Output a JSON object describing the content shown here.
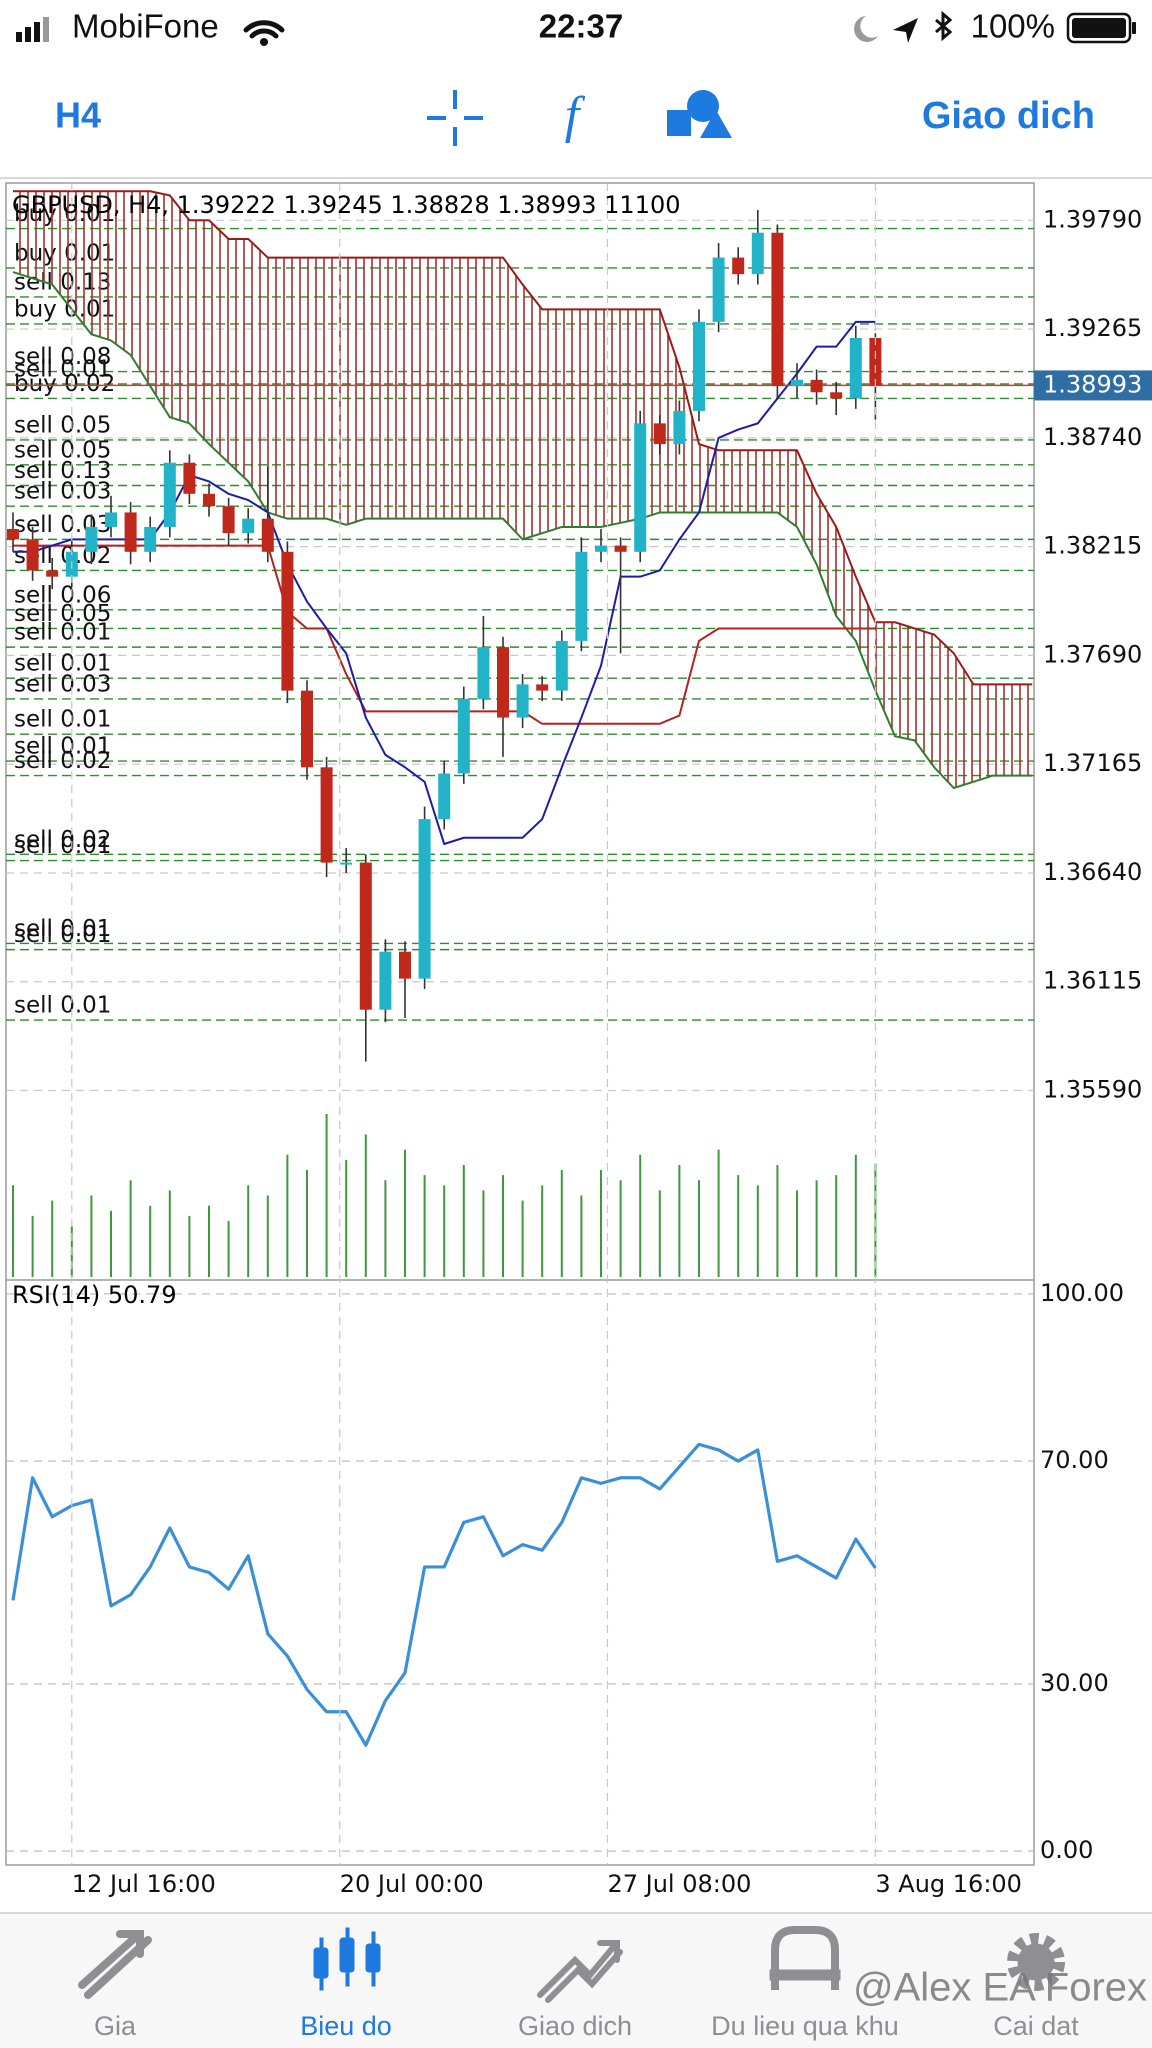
{
  "status_bar": {
    "carrier": "MobiFone",
    "time": "22:37",
    "battery": "100%"
  },
  "toolbar": {
    "timeframe": "H4",
    "trade": "Giao dich"
  },
  "chart": {
    "type": "candlestick",
    "header": "GBPUSD, H4, 1.39222 1.39245 1.38828 1.38993 11100",
    "ylim": [
      1.3469,
      1.3997
    ],
    "yticks": [
      {
        "value": 1.3979,
        "label": "1.39790"
      },
      1.39265,
      {
        "value": 1.3874,
        "label": "1.38740"
      },
      1.38215,
      {
        "value": 1.3769,
        "label": "1.37690"
      },
      1.37165,
      {
        "value": 1.3664,
        "label": "1.36640"
      },
      1.36115,
      {
        "value": 1.3559,
        "label": "1.35590"
      }
    ],
    "current_price": 1.38993,
    "xticks": [
      {
        "value": 3,
        "label": "12 Jul 16:00"
      },
      {
        "value": 16.67,
        "label": "20 Jul 00:00"
      },
      {
        "value": 30.33,
        "label": "27 Jul 08:00"
      },
      {
        "value": 44,
        "label": "3 Aug 16:00"
      }
    ],
    "candles": {
      "open": [
        1.383,
        1.3825,
        1.381,
        1.3807,
        1.3819,
        1.3831,
        1.3838,
        1.3819,
        1.3831,
        1.3862,
        1.3847,
        1.3841,
        1.3828,
        1.3835,
        1.3819,
        1.3752,
        1.3715,
        1.3669,
        1.3669,
        1.3598,
        1.3626,
        1.3613,
        1.369,
        1.3712,
        1.3748,
        1.3773,
        1.3739,
        1.3755,
        1.3752,
        1.3776,
        1.3819,
        1.3822,
        1.3819,
        1.3881,
        1.3871,
        1.3887,
        1.393,
        1.3961,
        1.3953,
        1.3973,
        1.3899,
        1.3902,
        1.3896,
        1.3893,
        1.39222
      ],
      "high": [
        1.3838,
        1.3831,
        1.3816,
        1.3825,
        1.3837,
        1.3846,
        1.3843,
        1.3836,
        1.3868,
        1.3866,
        1.3852,
        1.3845,
        1.384,
        1.386,
        1.3824,
        1.3757,
        1.372,
        1.3676,
        1.3673,
        1.3632,
        1.3631,
        1.3696,
        1.3718,
        1.3754,
        1.3788,
        1.3778,
        1.376,
        1.3759,
        1.3781,
        1.3826,
        1.383,
        1.3826,
        1.3887,
        1.3885,
        1.3892,
        1.3936,
        1.3968,
        1.3966,
        1.3984,
        1.3977,
        1.391,
        1.3907,
        1.3901,
        1.3928,
        1.39245
      ],
      "low": [
        1.3819,
        1.3805,
        1.3801,
        1.3802,
        1.3813,
        1.3826,
        1.3813,
        1.3814,
        1.3826,
        1.3842,
        1.3836,
        1.3822,
        1.3823,
        1.3814,
        1.3746,
        1.3709,
        1.3662,
        1.3664,
        1.3573,
        1.3592,
        1.3594,
        1.3608,
        1.3685,
        1.3707,
        1.3743,
        1.372,
        1.3734,
        1.3747,
        1.3747,
        1.3771,
        1.3814,
        1.377,
        1.3814,
        1.3866,
        1.3866,
        1.3882,
        1.3925,
        1.3948,
        1.3948,
        1.3893,
        1.3893,
        1.389,
        1.3885,
        1.3888,
        1.38828
      ],
      "close": [
        1.3825,
        1.381,
        1.3807,
        1.3819,
        1.3831,
        1.3838,
        1.3819,
        1.3831,
        1.3862,
        1.3847,
        1.3841,
        1.3828,
        1.3835,
        1.3819,
        1.3752,
        1.3715,
        1.3669,
        1.3669,
        1.3598,
        1.3626,
        1.3613,
        1.369,
        1.3712,
        1.3748,
        1.3773,
        1.3739,
        1.3755,
        1.3752,
        1.3776,
        1.3819,
        1.3822,
        1.3819,
        1.3881,
        1.3871,
        1.3887,
        1.393,
        1.3961,
        1.3953,
        1.3973,
        1.3899,
        1.3902,
        1.3896,
        1.3893,
        1.39222,
        1.38993
      ]
    },
    "volume": [
      9000,
      6000,
      7500,
      5000,
      8000,
      6500,
      9500,
      7000,
      8500,
      6000,
      7000,
      5500,
      9000,
      8000,
      12000,
      10500,
      16000,
      11500,
      14000,
      9500,
      12500,
      10000,
      9000,
      11000,
      8500,
      10000,
      7500,
      9000,
      10500,
      8000,
      10500,
      9500,
      12000,
      8500,
      11000,
      9500,
      12500,
      10000,
      9000,
      11000,
      8500,
      9500,
      10000,
      12000,
      11100
    ],
    "ichimoku": {
      "tenkan": [
        1.3819,
        1.3819,
        1.3822,
        1.3825,
        1.3825,
        1.3825,
        1.3825,
        1.3825,
        1.3838,
        1.3856,
        1.3853,
        1.3847,
        1.3844,
        1.3838,
        1.3813,
        1.3795,
        1.3782,
        1.377,
        1.3739,
        1.3721,
        1.3715,
        1.3708,
        1.3678,
        1.3681,
        1.3681,
        1.3681,
        1.3681,
        1.369,
        1.3715,
        1.3739,
        1.3764,
        1.3807,
        1.3807,
        1.381,
        1.3825,
        1.3838,
        1.3874,
        1.3878,
        1.3881,
        1.3893,
        1.3905,
        1.3918,
        1.3918,
        1.393,
        1.393
      ],
      "kijun": [
        1.3822,
        1.3822,
        1.3822,
        1.3822,
        1.3822,
        1.3822,
        1.3822,
        1.3822,
        1.3822,
        1.3822,
        1.3822,
        1.3822,
        1.3822,
        1.3822,
        1.379,
        1.3782,
        1.3782,
        1.376,
        1.3742,
        1.3742,
        1.3742,
        1.3742,
        1.3742,
        1.3742,
        1.3742,
        1.3742,
        1.3742,
        1.3736,
        1.3736,
        1.3736,
        1.3736,
        1.3736,
        1.3736,
        1.3736,
        1.374,
        1.3776,
        1.3782,
        1.3782,
        1.3782,
        1.3782,
        1.3782,
        1.3782,
        1.3782,
        1.3782,
        1.3782
      ],
      "span_a": [
        1.3954,
        1.3951,
        1.3948,
        1.3936,
        1.3924,
        1.3921,
        1.3914,
        1.3899,
        1.3884,
        1.3881,
        1.3871,
        1.3862,
        1.3853,
        1.3838,
        1.3835,
        1.3835,
        1.3835,
        1.3832,
        1.3835,
        1.3835,
        1.3835,
        1.3835,
        1.3835,
        1.3835,
        1.3835,
        1.3835,
        1.3825,
        1.3828,
        1.3831,
        1.3831,
        1.3831,
        1.3833,
        1.3835,
        1.3838,
        1.3838,
        1.3838,
        1.3838,
        1.3838,
        1.3838,
        1.3838,
        1.3831,
        1.3813,
        1.3788,
        1.3776,
        1.3752,
        1.373,
        1.3728,
        1.3715,
        1.3705,
        1.3708,
        1.3711,
        1.3711,
        1.3711
      ],
      "span_b": [
        1.3993,
        1.3993,
        1.3993,
        1.3993,
        1.3993,
        1.3993,
        1.3993,
        1.3993,
        1.3991,
        1.3979,
        1.3979,
        1.397,
        1.397,
        1.3961,
        1.3961,
        1.3961,
        1.3961,
        1.3961,
        1.3961,
        1.3961,
        1.3961,
        1.3961,
        1.3961,
        1.3961,
        1.3961,
        1.3961,
        1.3948,
        1.3936,
        1.3936,
        1.3936,
        1.3936,
        1.3936,
        1.3936,
        1.3936,
        1.3908,
        1.3871,
        1.3868,
        1.3868,
        1.3868,
        1.3868,
        1.3868,
        1.3847,
        1.3831,
        1.3807,
        1.3785,
        1.3785,
        1.3782,
        1.3779,
        1.377,
        1.3755,
        1.3755,
        1.3755,
        1.3755
      ]
    },
    "orders": [
      {
        "label": "buy 0.01",
        "price": 1.3975
      },
      {
        "label": "buy 0.01",
        "price": 1.3956
      },
      {
        "label": "sell 0.13",
        "price": 1.3942
      },
      {
        "label": "buy 0.01",
        "price": 1.3929
      },
      {
        "label": "sell 0.08",
        "price": 1.3906
      },
      {
        "label": "sell 0.01",
        "price": 1.39
      },
      {
        "label": "buy 0.02",
        "price": 1.3893
      },
      {
        "label": "sell 0.05",
        "price": 1.3873
      },
      {
        "label": "sell 0.05",
        "price": 1.3861
      },
      {
        "label": "sell 0.13",
        "price": 1.3851
      },
      {
        "label": "sell 0.03",
        "price": 1.3841
      },
      {
        "label": "sell 0.03",
        "price": 1.3825
      },
      {
        "label": "sell 0.02",
        "price": 1.381
      },
      {
        "label": "sell 0.06",
        "price": 1.3791
      },
      {
        "label": "sell 0.05",
        "price": 1.3782
      },
      {
        "label": "sell 0.01",
        "price": 1.3773
      },
      {
        "label": "sell 0.01",
        "price": 1.3758
      },
      {
        "label": "sell 0.03",
        "price": 1.3748
      },
      {
        "label": "sell 0.01",
        "price": 1.3731
      },
      {
        "label": "sell 0.01",
        "price": 1.3718
      },
      {
        "label": "sell 0.02",
        "price": 1.3711
      },
      {
        "label": "sell 0.02",
        "price": 1.3673
      },
      {
        "label": "sell 0.01",
        "price": 1.367
      },
      {
        "label": "sell 0.01",
        "price": 1.363
      },
      {
        "label": "sell 0.01",
        "price": 1.3627
      },
      {
        "label": "sell 0.01",
        "price": 1.3593
      }
    ]
  },
  "rsi": {
    "label": "RSI(14) 50.79",
    "ylim": [
      -2.5,
      102.5
    ],
    "yticks": [
      {
        "value": 100,
        "label": "100.00"
      },
      {
        "value": 70,
        "label": "70.00"
      },
      {
        "value": 30,
        "label": "30.00"
      },
      {
        "value": 0,
        "label": "0.00"
      }
    ],
    "values": [
      45,
      67,
      60,
      62,
      63,
      44,
      46,
      51,
      58,
      51,
      50,
      47,
      53,
      39,
      35,
      29,
      25,
      25,
      19,
      27,
      32,
      51,
      51,
      59,
      60,
      53,
      55,
      54,
      59,
      67,
      66,
      67,
      67,
      65,
      69,
      73,
      72,
      70,
      72,
      52,
      53,
      51,
      49,
      56,
      50.79
    ]
  },
  "tab_bar": {
    "tabs": [
      "Gia",
      "Bieu do",
      "Giao dich",
      "Du lieu qua khu",
      "Cai dat"
    ],
    "active": 1
  },
  "watermark": "@Alex EA Forex"
}
